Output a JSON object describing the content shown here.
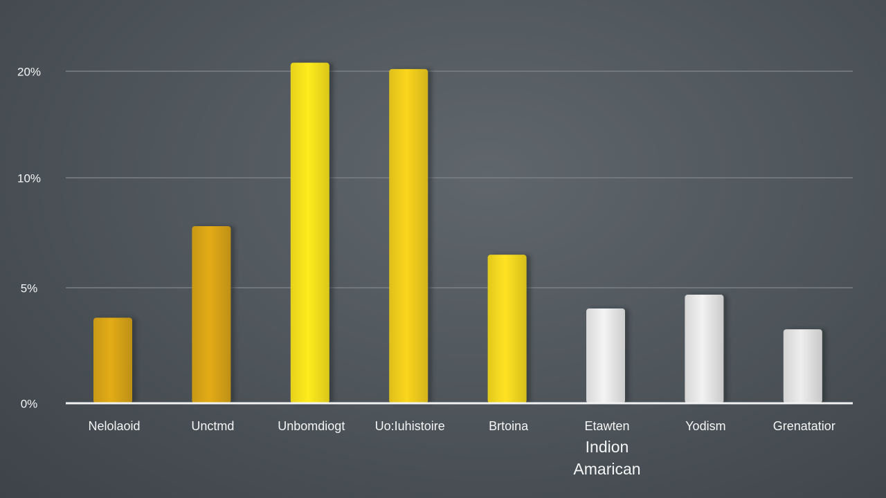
{
  "chart_data": {
    "type": "bar",
    "title": "",
    "xlabel": "",
    "ylabel": "",
    "ylim": [
      0,
      20
    ],
    "y_ticks": [
      {
        "value": 0,
        "label": "0%"
      },
      {
        "value": 5,
        "label": "5%"
      },
      {
        "value": 10,
        "label": "10%"
      },
      {
        "value": 20,
        "label": "20%"
      }
    ],
    "y_scale_note": "tick spacing is non-uniform as drawn",
    "grid": true,
    "categories": [
      [
        "Nelolaoid"
      ],
      [
        "Unctmd"
      ],
      [
        "Unbomdiogt"
      ],
      [
        "Uo:Iuhistoire"
      ],
      [
        "Brtoina"
      ],
      [
        "Etawten",
        "Indion",
        "Amarican"
      ],
      [
        "Yodism"
      ],
      [
        "Grenatatior"
      ]
    ],
    "values": [
      3.7,
      7.8,
      20.8,
      20.2,
      6.5,
      4.1,
      4.7,
      3.2
    ],
    "bar_colors": [
      "#d7a418",
      "#d8a416",
      "#f7e11c",
      "#efcc1d",
      "#f3d820",
      "#e8e8e8",
      "#e6e6e6",
      "#e3e3e3"
    ],
    "colors": {
      "gridline": "#7a8086",
      "baseline": "#f2f2f2",
      "text": "#f5f5f5"
    }
  }
}
